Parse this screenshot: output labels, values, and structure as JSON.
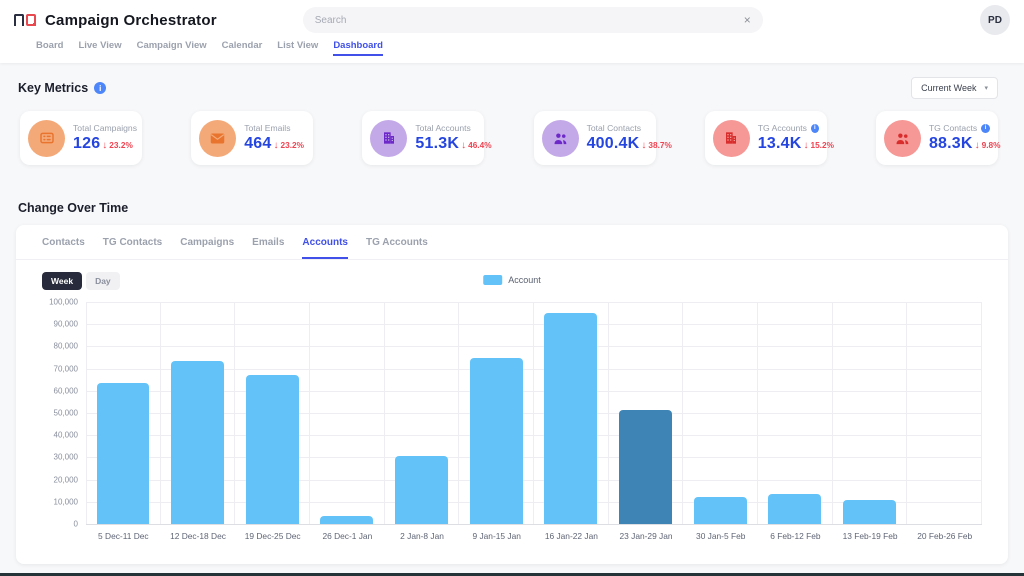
{
  "icons": {
    "info": "i",
    "clear": "×",
    "caret": "▾",
    "down_arrow": "↓"
  },
  "header": {
    "title": "Campaign Orchestrator",
    "search_placeholder": "Search",
    "avatar_initials": "PD"
  },
  "nav": {
    "items": [
      {
        "label": "Board",
        "active": false
      },
      {
        "label": "Live View",
        "active": false
      },
      {
        "label": "Campaign View",
        "active": false
      },
      {
        "label": "Calendar",
        "active": false
      },
      {
        "label": "List View",
        "active": false
      },
      {
        "label": "Dashboard",
        "active": true
      }
    ]
  },
  "key_metrics": {
    "title": "Key Metrics",
    "period_selector": "Current Week",
    "cards": [
      {
        "label": "Total Campaigns",
        "value": "126",
        "change": "23.2%",
        "direction": "down",
        "icon": "campaign-board-icon",
        "theme": "orange",
        "has_info": false
      },
      {
        "label": "Total Emails",
        "value": "464",
        "change": "23.2%",
        "direction": "down",
        "icon": "envelope-icon",
        "theme": "orange",
        "has_info": false
      },
      {
        "label": "Total Accounts",
        "value": "51.3K",
        "change": "46.4%",
        "direction": "down",
        "icon": "building-icon",
        "theme": "purple",
        "has_info": false
      },
      {
        "label": "Total Contacts",
        "value": "400.4K",
        "change": "38.7%",
        "direction": "down",
        "icon": "people-icon",
        "theme": "purple",
        "has_info": false
      },
      {
        "label": "TG Accounts",
        "value": "13.4K",
        "change": "15.2%",
        "direction": "down",
        "icon": "building-icon",
        "theme": "red",
        "has_info": true
      },
      {
        "label": "TG Contacts",
        "value": "88.3K",
        "change": "9.8%",
        "direction": "down",
        "icon": "people-icon",
        "theme": "red",
        "has_info": true
      }
    ]
  },
  "change_over_time": {
    "title": "Change Over Time",
    "tabs": [
      {
        "label": "Contacts",
        "active": false
      },
      {
        "label": "TG Contacts",
        "active": false
      },
      {
        "label": "Campaigns",
        "active": false
      },
      {
        "label": "Emails",
        "active": false
      },
      {
        "label": "Accounts",
        "active": true
      },
      {
        "label": "TG Accounts",
        "active": false
      }
    ],
    "toggle": {
      "options": [
        "Week",
        "Day"
      ],
      "active": "Week"
    },
    "legend": "Account"
  },
  "chart_data": {
    "type": "bar",
    "title": "",
    "categories": [
      "5 Dec-11 Dec",
      "12 Dec-18 Dec",
      "19 Dec-25 Dec",
      "26 Dec-1 Jan",
      "2 Jan-8 Jan",
      "9 Jan-15 Jan",
      "16 Jan-22 Jan",
      "23 Jan-29 Jan",
      "30 Jan-5 Feb",
      "6 Feb-12 Feb",
      "13 Feb-19 Feb",
      "20 Feb-26 Feb"
    ],
    "series": [
      {
        "name": "Account",
        "values": [
          63500,
          73500,
          67000,
          3500,
          30500,
          75000,
          95000,
          51300,
          12200,
          13300,
          11000,
          0
        ]
      }
    ],
    "highlight_index": 7,
    "xlabel": "",
    "ylabel": "",
    "ylim": [
      0,
      100000
    ],
    "ytick_step": 10000,
    "grid": true,
    "legend_position": "top-center",
    "colors": {
      "bar": "#63c3f8",
      "highlight": "#3e85b5"
    }
  }
}
